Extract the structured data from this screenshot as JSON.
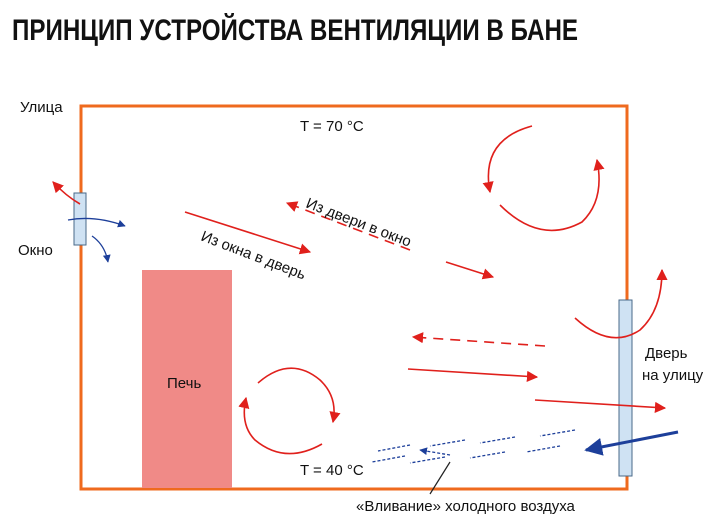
{
  "header": {
    "title": "ПРИНЦИП УСТРОЙСТВА ВЕНТИЛЯЦИИ В БАНЕ"
  },
  "labels": {
    "street": "Улица",
    "top_temp": "T = 70 °C",
    "door_to_window": "Из двери в окно",
    "window_to_door": "Из окна в дверь",
    "window": "Окно",
    "stove": "Печь",
    "door_line1": "Дверь",
    "door_line2": "на улицу",
    "bottom_temp": "T = 40 °C",
    "cold_inflow": "«Вливание» холодного воздуха"
  }
}
